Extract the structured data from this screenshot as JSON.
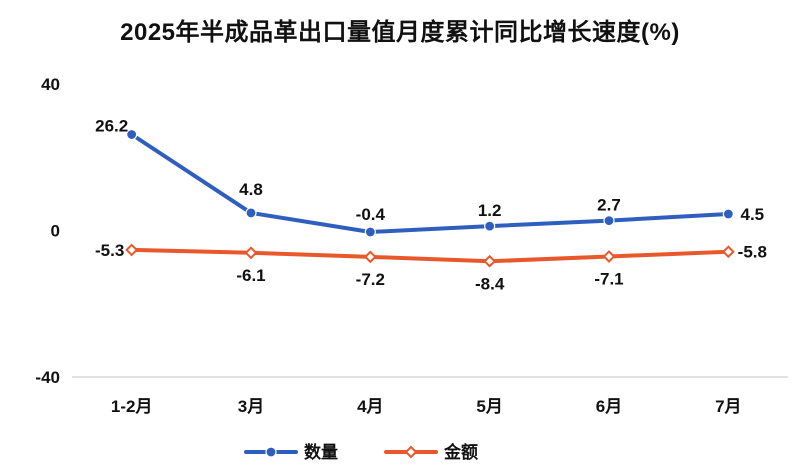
{
  "chart_data": {
    "type": "line",
    "title": "2025年半成品革出口量值月度累计同比增长速度(%)",
    "categories": [
      "1-2月",
      "3月",
      "4月",
      "5月",
      "6月",
      "7月"
    ],
    "series": [
      {
        "name": "数量",
        "values": [
          26.2,
          4.8,
          -0.4,
          1.2,
          2.7,
          4.5
        ],
        "color": "#2E5FBF",
        "marker": "circle"
      },
      {
        "name": "金额",
        "values": [
          -5.3,
          -6.1,
          -7.2,
          -8.4,
          -7.1,
          -5.8
        ],
        "color": "#E8582A",
        "marker": "diamond"
      }
    ],
    "ylim": [
      -40,
      40
    ],
    "yticks": [
      40,
      0,
      -40
    ],
    "ytick_labels": [
      "40",
      "0",
      "-40"
    ],
    "grid": false,
    "legend": "bottom"
  }
}
